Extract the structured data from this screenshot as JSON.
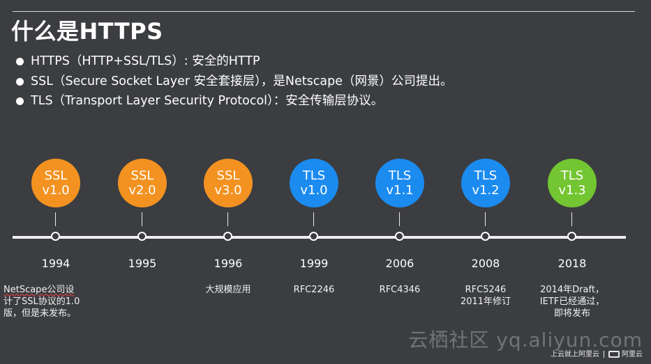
{
  "title": "什么是HTTPS",
  "bullets": [
    "HTTPS（HTTP+SSL/TLS）: 安全的HTTP",
    "SSL（Secure Socket Layer  安全套接层），是Netscape（网景）公司提出。",
    "TLS（Transport Layer Security Protocol）：安全传输层协议。"
  ],
  "timeline": [
    {
      "line1": "SSL",
      "line2": "v1.0",
      "year": "1994",
      "note": [
        "NetScape公司设",
        "计了SSL协议的1.0",
        "版，但是未发布。"
      ],
      "color": "#f39221"
    },
    {
      "line1": "SSL",
      "line2": "v2.0",
      "year": "1995",
      "note": [],
      "color": "#f39221"
    },
    {
      "line1": "SSL",
      "line2": "v3.0",
      "year": "1996",
      "note": [
        "大规模应用"
      ],
      "color": "#f39221"
    },
    {
      "line1": "TLS",
      "line2": "v1.0",
      "year": "1999",
      "note": [
        "RFC2246"
      ],
      "color": "#1b8bf0"
    },
    {
      "line1": "TLS",
      "line2": "v1.1",
      "year": "2006",
      "note": [
        "RFC4346"
      ],
      "color": "#1b8bf0"
    },
    {
      "line1": "TLS",
      "line2": "v1.2",
      "year": "2008",
      "note": [
        "RFC5246",
        "2011年修订"
      ],
      "color": "#1b8bf0"
    },
    {
      "line1": "TLS",
      "line2": "v1.3",
      "year": "2018",
      "note": [
        "2014年Draft，",
        "IETF已经通过，",
        "即将发布"
      ],
      "color": "#73c531"
    }
  ],
  "watermark": "云栖社区 yq.aliyun.com",
  "footer": {
    "left": "上云就上阿里云",
    "right": "阿里云"
  }
}
